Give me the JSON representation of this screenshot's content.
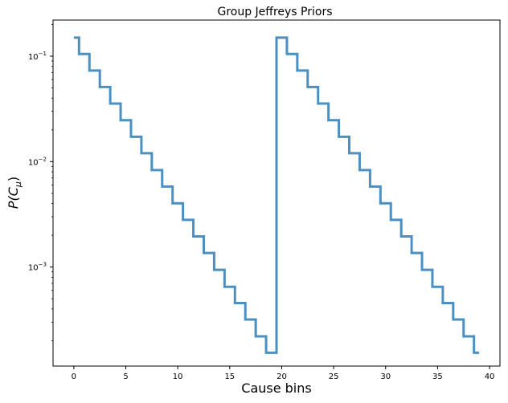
{
  "chart_data": {
    "type": "line",
    "drawstyle": "steps-mid",
    "title": "Group Jeffreys Priors",
    "xlabel": "Cause bins",
    "ylabel": "P(C",
    "ylabel_subscript": "μ",
    "ylabel_suffix": ")",
    "yscale": "log",
    "xlim": [
      -2,
      41
    ],
    "ylim": [
      0.000115,
      0.22
    ],
    "xticks": [
      0,
      5,
      10,
      15,
      20,
      25,
      30,
      35,
      40
    ],
    "xtick_labels": [
      "0",
      "5",
      "10",
      "15",
      "20",
      "25",
      "30",
      "35",
      "40"
    ],
    "yticks": [
      {
        "value": 0.1,
        "base": "10",
        "exponent": "−1"
      },
      {
        "value": 0.01,
        "base": "10",
        "exponent": "−2"
      },
      {
        "value": 0.001,
        "base": "10",
        "exponent": "−3"
      }
    ],
    "grid": false,
    "line_color": "#4a90c2",
    "x": [
      0,
      1,
      2,
      3,
      4,
      5,
      6,
      7,
      8,
      9,
      10,
      11,
      12,
      13,
      14,
      15,
      16,
      17,
      18,
      19,
      20,
      21,
      22,
      23,
      24,
      25,
      26,
      27,
      28,
      29,
      30,
      31,
      32,
      33,
      34,
      35,
      36,
      37,
      38,
      39
    ],
    "values": [
      0.15,
      0.105,
      0.073,
      0.051,
      0.0355,
      0.0247,
      0.0172,
      0.012,
      0.0083,
      0.0058,
      0.00402,
      0.0028,
      0.00195,
      0.00136,
      0.00094,
      0.00065,
      0.000455,
      0.000318,
      0.00022,
      0.000154,
      0.15,
      0.105,
      0.073,
      0.051,
      0.0355,
      0.0247,
      0.0172,
      0.012,
      0.0083,
      0.0058,
      0.00402,
      0.0028,
      0.00195,
      0.00136,
      0.00094,
      0.00065,
      0.000455,
      0.000318,
      0.00022,
      0.000154
    ]
  }
}
